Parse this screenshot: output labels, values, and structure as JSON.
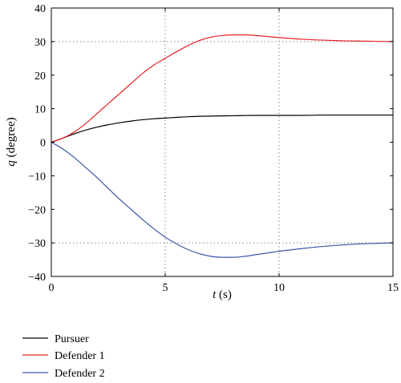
{
  "chart_data": {
    "type": "line",
    "xlabel_var": "t",
    "xlabel_unit": " (s)",
    "ylabel_var": "q",
    "ylabel_unit": " (degree)",
    "xlim": [
      0,
      15
    ],
    "ylim": [
      -40,
      40
    ],
    "xticks": [
      0,
      5,
      10,
      15
    ],
    "yticks": [
      -40,
      -30,
      -20,
      -10,
      0,
      10,
      20,
      30,
      40
    ],
    "ytick_labels": [
      "−40",
      "−30",
      "−20",
      "−10",
      "0",
      "10",
      "20",
      "30",
      "40"
    ],
    "grid": "dotted, at x=5, x=10 and y=30, y=-30",
    "legend_position": "below plot, left",
    "series": [
      {
        "name": "Pursuer",
        "color": "#000000",
        "x": [
          0,
          0.5,
          1,
          1.5,
          2,
          2.5,
          3,
          3.5,
          4,
          4.5,
          5,
          5.5,
          6,
          7,
          8,
          9,
          10,
          11,
          12,
          13,
          14,
          15
        ],
        "y": [
          0,
          1.2,
          2.5,
          3.6,
          4.5,
          5.2,
          5.8,
          6.3,
          6.7,
          7.0,
          7.2,
          7.4,
          7.6,
          7.8,
          7.9,
          8.0,
          8.0,
          8.0,
          8.1,
          8.1,
          8.1,
          8.1
        ]
      },
      {
        "name": "Defender 1",
        "color": "#e8202a",
        "x": [
          0,
          0.5,
          1,
          1.5,
          2,
          2.5,
          3,
          3.5,
          4,
          4.5,
          5,
          5.5,
          6,
          6.5,
          7,
          7.5,
          8,
          8.5,
          9,
          9.5,
          10,
          11,
          12,
          13,
          14,
          15
        ],
        "y": [
          0,
          1.2,
          3,
          5.5,
          8.5,
          11.5,
          14.5,
          17.5,
          20.5,
          23,
          25,
          27,
          28.8,
          30.3,
          31.3,
          31.8,
          32,
          32,
          31.8,
          31.5,
          31.2,
          30.7,
          30.4,
          30.2,
          30.1,
          30
        ]
      },
      {
        "name": "Defender 2",
        "color": "#3a56a8",
        "x": [
          0,
          0.5,
          1,
          1.5,
          2,
          2.5,
          3,
          3.5,
          4,
          4.5,
          5,
          5.5,
          6,
          6.5,
          7,
          7.5,
          8,
          8.5,
          9,
          9.5,
          10,
          11,
          12,
          13,
          14,
          15
        ],
        "y": [
          0,
          -2,
          -4.5,
          -7.5,
          -10.5,
          -13.8,
          -17,
          -20,
          -23,
          -25.8,
          -28.3,
          -30.3,
          -32,
          -33.2,
          -34,
          -34.3,
          -34.3,
          -34,
          -33.5,
          -33,
          -32.5,
          -31.7,
          -31,
          -30.5,
          -30.2,
          -30
        ]
      }
    ]
  }
}
